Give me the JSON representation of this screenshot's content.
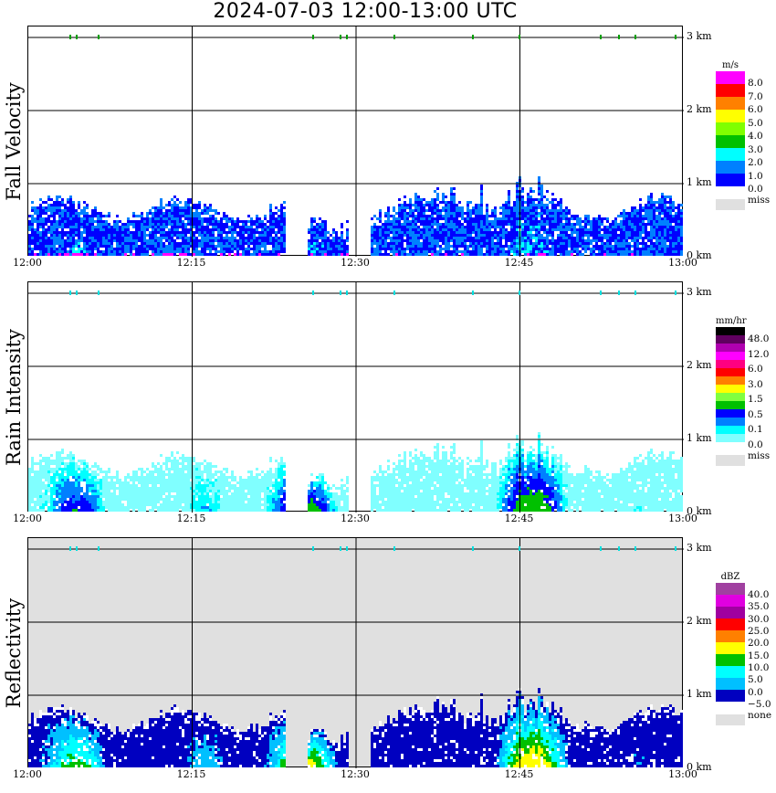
{
  "title": "2024-07-03   12:00-13:00 UTC",
  "chart_data": {
    "type": "heatmap",
    "title": "2024-07-03   12:00-13:00 UTC",
    "x_ticks": [
      "12:00",
      "12:15",
      "12:30",
      "12:45",
      "13:00"
    ],
    "y_ticks": [
      "0 km",
      "1 km",
      "2 km",
      "3 km"
    ],
    "ylim_km": [
      0,
      3
    ],
    "grid": true,
    "panels": [
      {
        "ylabel": "Fall Velocity",
        "unit": "m/s",
        "colors": [
          "#0000ff",
          "#0080ff",
          "#00ffff",
          "#00c000",
          "#80ff00",
          "#ffff00",
          "#ff8000",
          "#ff0000",
          "#ff00ff"
        ],
        "levels": [
          "8.0",
          "7.0",
          "6.0",
          "5.0",
          "4.0",
          "3.0",
          "2.0",
          "1.0",
          "0.0"
        ],
        "miss_label": "miss",
        "bg": "#ffffff"
      },
      {
        "ylabel": "Rain Intensity",
        "unit": "mm/hr",
        "colors": [
          "#80ffff",
          "#00ffff",
          "#0080ff",
          "#0000ff",
          "#00c000",
          "#80ff40",
          "#ffff00",
          "#ff8000",
          "#ff0000",
          "#ff0080",
          "#ff00ff",
          "#b000b0",
          "#600060",
          "#000000"
        ],
        "levels": [
          "48.0",
          "12.0",
          "6.0",
          "3.0",
          "1.5",
          "0.5",
          "0.1",
          "0.0"
        ],
        "miss_label": "miss",
        "bg": "#ffffff"
      },
      {
        "ylabel": "Reflectivity",
        "unit": "dBZ",
        "colors": [
          "#0000c0",
          "#00c0ff",
          "#00ffff",
          "#00c000",
          "#ffff00",
          "#ff8000",
          "#ff0000",
          "#a000a0",
          "#e000e0",
          "#a040a0"
        ],
        "levels": [
          "40.0",
          "35.0",
          "30.0",
          "25.0",
          "20.0",
          "15.0",
          "10.0",
          "5.0",
          "0.0",
          "−5.0"
        ],
        "miss_label": "none",
        "bg": "#e0e0e0"
      }
    ]
  }
}
